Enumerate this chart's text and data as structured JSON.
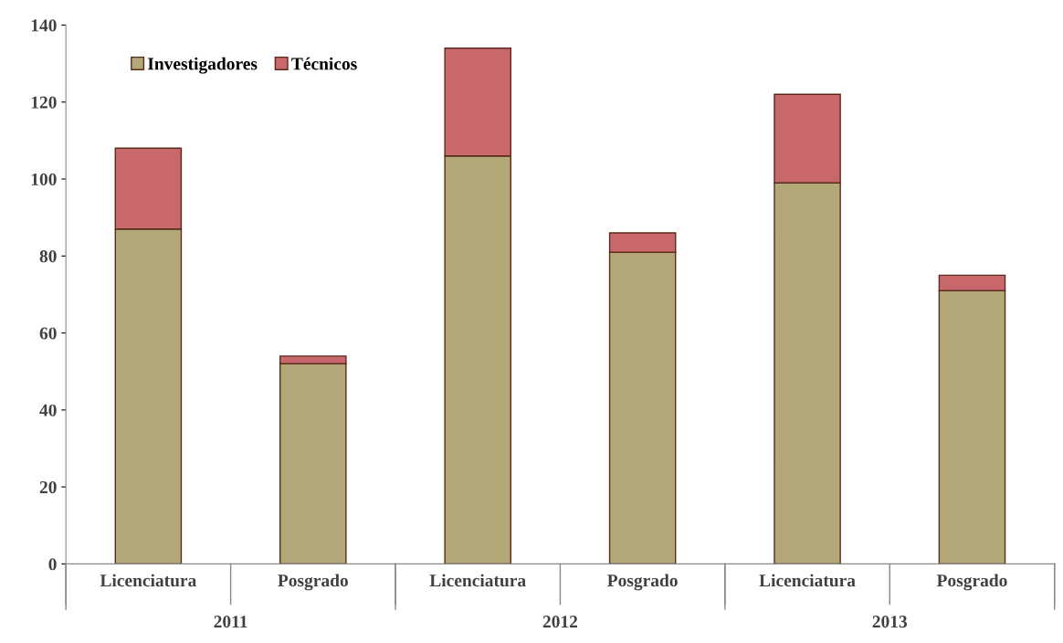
{
  "chart_data": {
    "type": "bar",
    "stacked": true,
    "categories": [
      "Licenciatura",
      "Posgrado",
      "Licenciatura",
      "Posgrado",
      "Licenciatura",
      "Posgrado"
    ],
    "annotations": [
      "2011",
      "2012",
      "2013"
    ],
    "series": [
      {
        "name": "Investigadores",
        "color": "#b3a978",
        "values": [
          87,
          52,
          106,
          81,
          99,
          71
        ]
      },
      {
        "name": "Técnicos",
        "color": "#c8686c",
        "values": [
          21,
          2,
          28,
          5,
          23,
          4
        ]
      }
    ],
    "ylim": [
      0,
      140
    ],
    "yticks": [
      0,
      20,
      40,
      60,
      80,
      100,
      120,
      140
    ],
    "grid": false,
    "legend": "top left"
  }
}
